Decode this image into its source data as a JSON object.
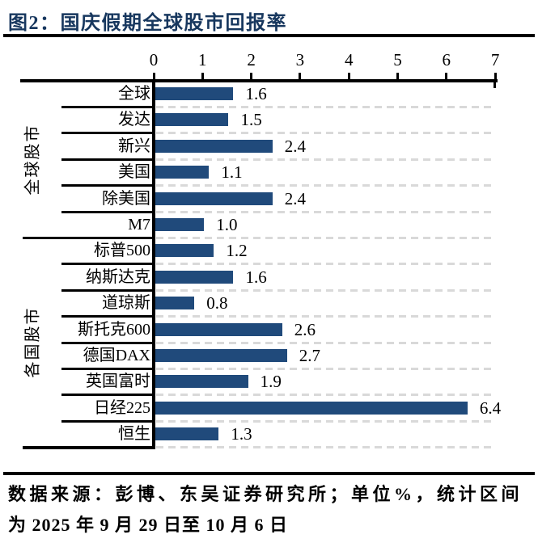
{
  "page": {
    "title": "图2：国庆假期全球股市回报率",
    "source_note_line1": "数据来源：彭博、东吴证券研究所；单位%，统计区间",
    "source_note_line2": "为 2025 年 9 月 29 日至 10 月 6 日"
  },
  "colors": {
    "bar": "#204A7B",
    "title_text": "#17375E",
    "axis_line": "#000000",
    "gridline": "#D9D9D9"
  },
  "chart_data": {
    "type": "bar",
    "orientation": "horizontal",
    "title": "国庆假期全球股市回报率",
    "unit": "%",
    "legend": "none",
    "x_axis": {
      "position": "top",
      "range": [
        0,
        7
      ],
      "ticks": [
        0,
        1,
        2,
        3,
        4,
        5,
        6,
        7
      ],
      "tick_labels": [
        "0",
        "1",
        "2",
        "3",
        "4",
        "5",
        "6",
        "7"
      ]
    },
    "grid": "dashed gray row-separator lines in plot area",
    "groups": [
      {
        "label": "全球股市",
        "categories": [
          "全球",
          "发达",
          "新兴",
          "美国",
          "除美国",
          "M7"
        ],
        "values": [
          1.6,
          1.5,
          2.4,
          1.1,
          2.4,
          1.0
        ]
      },
      {
        "label": "各国股市",
        "categories": [
          "标普500",
          "纳斯达克",
          "道琼斯",
          "斯托克600",
          "德国DAX",
          "英国富时",
          "日经225",
          "恒生"
        ],
        "values": [
          1.2,
          1.6,
          0.8,
          2.6,
          2.7,
          1.9,
          6.4,
          1.3
        ]
      }
    ]
  }
}
